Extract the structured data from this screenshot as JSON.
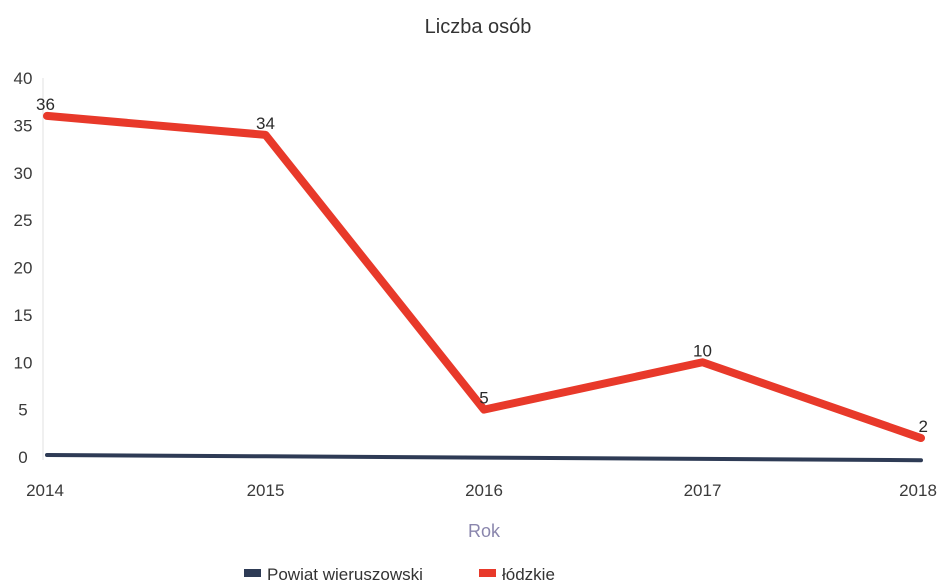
{
  "chart_data": {
    "type": "line",
    "title": "Liczba osób",
    "xlabel": "Rok",
    "ylabel": "",
    "x": [
      "2014",
      "2015",
      "2016",
      "2017",
      "2018"
    ],
    "ylim": [
      0,
      40
    ],
    "yticks": [
      0,
      5,
      10,
      15,
      20,
      25,
      30,
      35,
      40
    ],
    "grid": false,
    "legend_position": "bottom",
    "series": [
      {
        "name": "Powiat wieruszowski",
        "values": [
          0,
          0,
          0,
          0,
          0
        ],
        "color": "#2e3b55",
        "labels": [
          "",
          "",
          "",
          "",
          ""
        ]
      },
      {
        "name": "łódzkie",
        "values": [
          36,
          34,
          5,
          10,
          2
        ],
        "color": "#e8392a",
        "labels": [
          "36",
          "34",
          "5",
          "10",
          "2"
        ]
      }
    ]
  }
}
